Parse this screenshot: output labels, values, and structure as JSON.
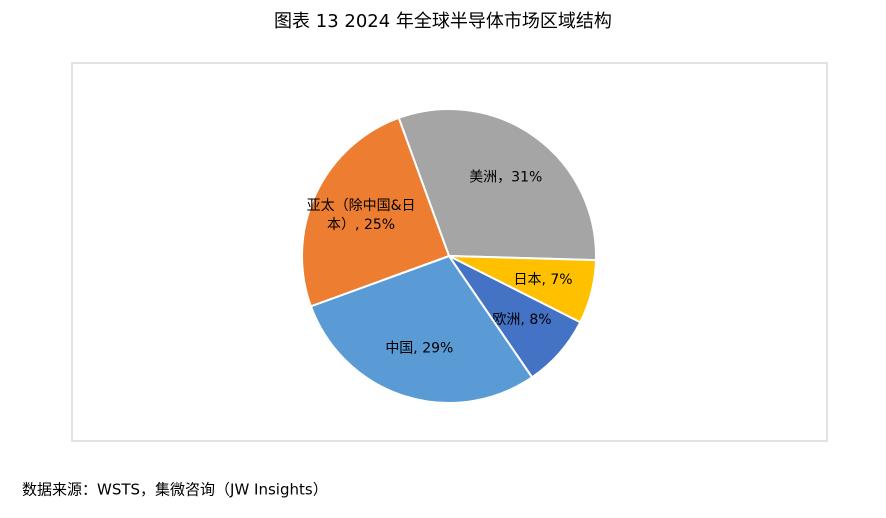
{
  "chart_data": {
    "type": "pie",
    "title": "图表 13 2024 年全球半导体市场区域结构",
    "values": [
      31,
      7,
      8,
      29,
      25
    ],
    "value_labels": [
      "美洲，31%",
      "日本, 7%",
      "欧洲, 8%",
      "中国, 29%",
      "亚太（除中国&日本）, 25%"
    ],
    "colors": [
      "#a5a5a5",
      "#ffc000",
      "#4472c4",
      "#5b9bd5",
      "#ed7d31"
    ],
    "source": "数据来源：WSTS，集微咨询（JW Insights）"
  }
}
